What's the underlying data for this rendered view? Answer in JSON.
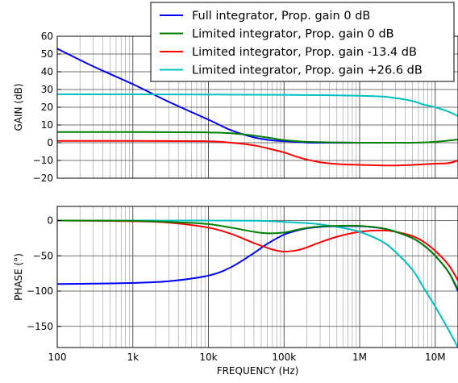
{
  "chart_data": {
    "type": "line",
    "xscale": "log",
    "xlim": [
      100,
      20000000
    ],
    "xlabel": "FREQUENCY (Hz)",
    "xtick_values": [
      100,
      1000,
      10000,
      100000,
      1000000,
      10000000
    ],
    "xtick_labels": [
      "100",
      "1k",
      "10k",
      "100k",
      "1M",
      "10M"
    ],
    "grid": true,
    "legend_position": "top-right",
    "series": [
      {
        "name": "Full integrator, Prop. gain 0 dB",
        "color": "#0000ff"
      },
      {
        "name": "Limited integrator, Prop. gain 0 dB",
        "color": "#008000"
      },
      {
        "name": "Limited integrator, Prop. gain -13.4 dB",
        "color": "#ff0000"
      },
      {
        "name": "Limited integrator, Prop. gain +26.6 dB",
        "color": "#00bfbf"
      }
    ],
    "panels": [
      {
        "id": "gain",
        "ylabel": "GAIN (dB)",
        "ylim": [
          -20,
          60
        ],
        "ytick_values": [
          -20,
          -10,
          0,
          10,
          20,
          30,
          40,
          50,
          60
        ],
        "ytick_labels": [
          "−20",
          "−10",
          "0",
          "10",
          "20",
          "30",
          "40",
          "50",
          "60"
        ],
        "series_data": [
          {
            "x": [
              100,
              300,
              1000,
              3000,
              10000,
              20000,
              40000,
              70000,
              100000,
              200000,
              300000,
              1000000
            ],
            "y": [
              53,
              43,
              33,
              23,
              13,
              7,
              3,
              1.3,
              0.9,
              0.1,
              0,
              0
            ]
          },
          {
            "x": [
              100,
              1000,
              10000,
              20000,
              40000,
              70000,
              100000,
              200000,
              500000,
              1000000,
              3000000,
              5000000,
              10000000,
              20000000
            ],
            "y": [
              6,
              6,
              5.8,
              5.3,
              4,
              2.5,
              1.5,
              0.5,
              0.2,
              0,
              0,
              0,
              0.5,
              1.8
            ]
          },
          {
            "x": [
              100,
              1000,
              10000,
              20000,
              40000,
              70000,
              100000,
              150000,
              200000,
              300000,
              500000,
              1000000,
              2000000,
              3000000,
              5000000,
              10000000,
              15000000,
              20000000
            ],
            "y": [
              1,
              1,
              0.8,
              0,
              -1.5,
              -3.8,
              -5.5,
              -8,
              -9.5,
              -11,
              -12,
              -12.5,
              -12.8,
              -12.8,
              -12.5,
              -11.8,
              -11.5,
              -10
            ]
          },
          {
            "x": [
              100,
              10000,
              100000,
              300000,
              1000000,
              2000000,
              3000000,
              5000000,
              7000000,
              10000000,
              15000000,
              20000000
            ],
            "y": [
              27.3,
              27.2,
              27,
              26.8,
              26.5,
              26,
              25.2,
              23.5,
              21.5,
              20,
              17.5,
              15
            ]
          }
        ]
      },
      {
        "id": "phase",
        "ylabel": "PHASE (°)",
        "ylim": [
          -180,
          20
        ],
        "ytick_values": [
          -150,
          -100,
          -50,
          0
        ],
        "ytick_labels": [
          "−150",
          "−100",
          "−50",
          "0"
        ],
        "series_data": [
          {
            "x": [
              100,
              300,
              1000,
              3000,
              10000,
              20000,
              40000,
              60000,
              100000,
              150000,
              200000,
              300000,
              500000,
              1000000,
              2000000,
              3000000,
              5000000,
              7000000,
              10000000,
              15000000,
              20000000
            ],
            "y": [
              -90,
              -89.5,
              -88.5,
              -86,
              -78,
              -66,
              -46,
              -33,
              -20,
              -14,
              -11,
              -9,
              -8,
              -8,
              -11,
              -16,
              -25,
              -35,
              -50,
              -73,
              -100
            ]
          },
          {
            "x": [
              100,
              1000,
              5000,
              10000,
              20000,
              40000,
              60000,
              100000,
              150000,
              200000,
              300000,
              500000,
              1000000,
              2000000,
              3000000,
              5000000,
              7000000,
              10000000,
              15000000,
              20000000
            ],
            "y": [
              0,
              -0.5,
              -3,
              -5,
              -10,
              -16,
              -18,
              -17,
              -13,
              -10.5,
              -8.5,
              -7.5,
              -7.5,
              -11,
              -16,
              -25,
              -35,
              -50,
              -73,
              -98
            ]
          },
          {
            "x": [
              100,
              1000,
              3000,
              10000,
              20000,
              40000,
              70000,
              100000,
              150000,
              200000,
              300000,
              500000,
              1000000,
              2000000,
              3000000,
              5000000,
              7000000,
              10000000,
              15000000,
              20000000
            ],
            "y": [
              0,
              -1,
              -3,
              -10,
              -19,
              -32,
              -41,
              -44,
              -42,
              -38,
              -31,
              -23,
              -16,
              -14,
              -16,
              -22,
              -30,
              -43,
              -63,
              -85
            ]
          },
          {
            "x": [
              100,
              10000,
              50000,
              100000,
              200000,
              300000,
              500000,
              1000000,
              2000000,
              3000000,
              5000000,
              7000000,
              10000000,
              15000000,
              20000000
            ],
            "y": [
              0,
              0,
              -0.5,
              -2,
              -3.5,
              -5.5,
              -9,
              -16,
              -30,
              -45,
              -70,
              -95,
              -122,
              -155,
              -180
            ]
          }
        ]
      }
    ]
  }
}
